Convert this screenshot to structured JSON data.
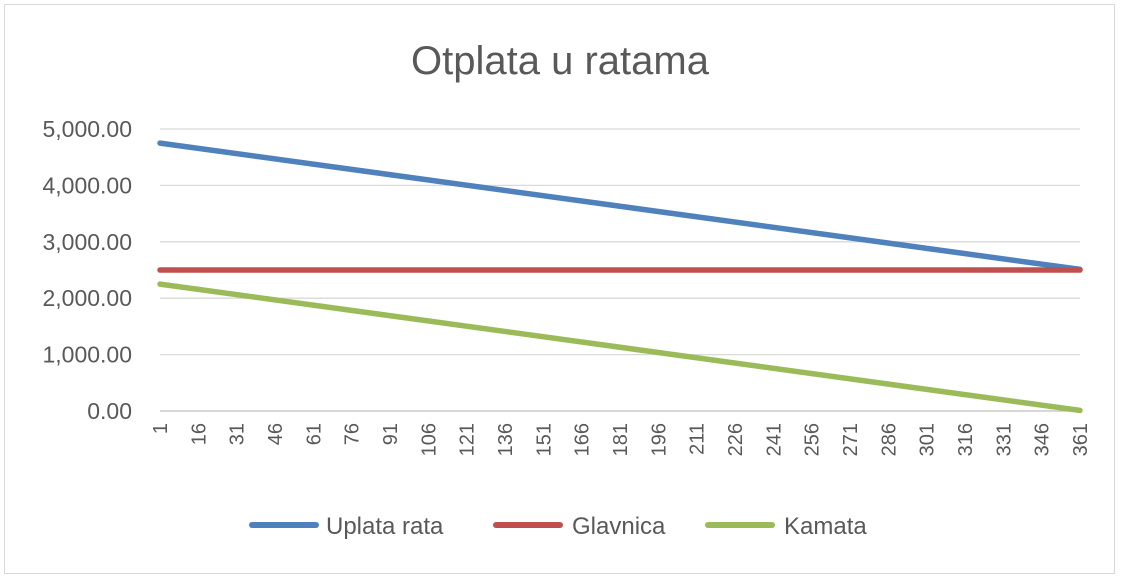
{
  "chart_data": {
    "type": "line",
    "title": "Otplata u ratama",
    "xlabel": "",
    "ylabel": "",
    "x_range": [
      1,
      361
    ],
    "x_ticks": [
      "1",
      "16",
      "31",
      "46",
      "61",
      "76",
      "91",
      "106",
      "121",
      "136",
      "151",
      "166",
      "181",
      "196",
      "211",
      "226",
      "241",
      "256",
      "271",
      "286",
      "301",
      "316",
      "331",
      "346",
      "361"
    ],
    "ylim": [
      0,
      5000
    ],
    "y_ticks": [
      "0.00",
      "1,000.00",
      "2,000.00",
      "3,000.00",
      "4,000.00",
      "5,000.00"
    ],
    "y_tick_values": [
      0,
      1000,
      2000,
      3000,
      4000,
      5000
    ],
    "grid": true,
    "legend_position": "bottom",
    "series": [
      {
        "name": "Uplata rata",
        "color": "#4f81bd",
        "x": [
          1,
          361
        ],
        "values": [
          4750,
          2510
        ]
      },
      {
        "name": "Glavnica",
        "color": "#c0504d",
        "x": [
          1,
          361
        ],
        "values": [
          2500,
          2500
        ]
      },
      {
        "name": "Kamata",
        "color": "#9bbb59",
        "x": [
          1,
          361
        ],
        "values": [
          2250,
          10
        ]
      }
    ]
  }
}
